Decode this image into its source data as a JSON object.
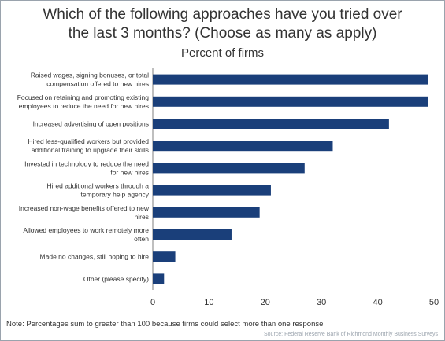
{
  "chart_data": {
    "type": "bar",
    "orientation": "horizontal",
    "title": "Which of the following approaches have you tried over\nthe last 3 months? (Choose as many as apply)",
    "subtitle": "Percent of firms",
    "categories": [
      [
        "Raised wages, signing bonuses, or total",
        "compensation offered to new hires"
      ],
      [
        "Focused on retaining and promoting existing",
        "employees to reduce the need for new hires"
      ],
      [
        "Increased advertising of open positions"
      ],
      [
        "Hired less-qualified workers but provided",
        "additional training to upgrade their skills"
      ],
      [
        "Invested in technology to reduce the need",
        "for new hires"
      ],
      [
        "Hired additional workers through a",
        "temporary help agency"
      ],
      [
        "Increased non-wage benefits offered to new",
        "hires"
      ],
      [
        "Allowed employees to work remotely more",
        "often"
      ],
      [
        "Made no changes, still hoping to hire"
      ],
      [
        "Other (please specify)"
      ]
    ],
    "values": [
      49,
      49,
      42,
      32,
      27,
      21,
      19,
      14,
      4,
      2
    ],
    "xlim": [
      0,
      50
    ],
    "xticks": [
      "0",
      "10",
      "20",
      "30",
      "40",
      "50"
    ],
    "grid": false,
    "legend": "none",
    "bar_color": "#1a3f7a"
  },
  "note": "Note: Percentages sum to greater than 100 because firms could select more than one response",
  "source": "Source: Federal Reserve Bank of Richmond Monthly Business Surveys"
}
